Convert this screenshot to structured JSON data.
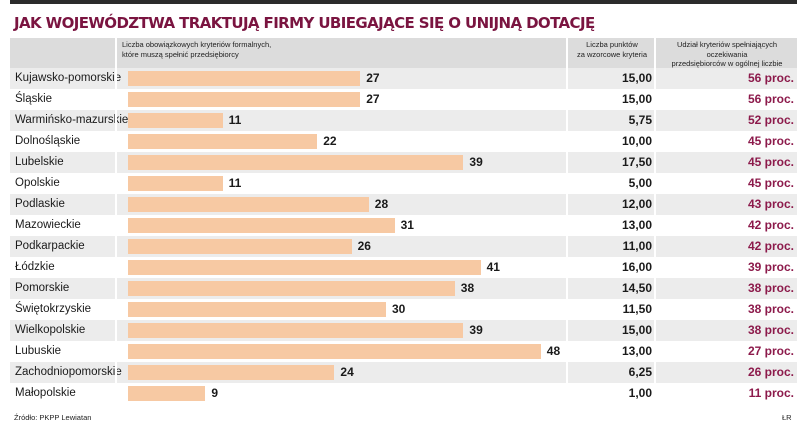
{
  "title": "JAK WOJEWÓDZTWA TRAKTUJĄ FIRMY UBIEGAJĄCE SIĘ O UNIJNĄ DOTACJĘ",
  "headers": {
    "col1_line1": "Liczba obowiązkowych kryteriów formalnych,",
    "col1_line2": "które muszą spełnić przedsiębiorcy",
    "col2_line1": "Liczba punktów",
    "col2_line2": "za wzorcowe kryteria",
    "col3_line1": "Udział kryteriów spełniających oczekiwania",
    "col3_line2": "przedsiębiorców w ogólnej liczbie kryteriów"
  },
  "source": "Źródło: PKPP Lewiatan",
  "author": "ŁR",
  "colors": {
    "bar": "#f7c9a3",
    "accent": "#8c1a4b",
    "title": "#7a1440"
  },
  "chart_data": {
    "type": "bar",
    "orientation": "horizontal",
    "title": "JAK WOJEWÓDZTWA TRAKTUJĄ FIRMY UBIEGAJĄCE SIĘ O UNIJNĄ DOTACJĘ",
    "xlim": [
      0,
      50
    ],
    "rows": [
      {
        "region": "Kujawsko-pomorskie",
        "criteria": 27,
        "points": "15,00",
        "share": "56 proc."
      },
      {
        "region": "Śląskie",
        "criteria": 27,
        "points": "15,00",
        "share": "56 proc."
      },
      {
        "region": "Warmińsko-mazurskie",
        "criteria": 11,
        "points": "5,75",
        "share": "52 proc."
      },
      {
        "region": "Dolnośląskie",
        "criteria": 22,
        "points": "10,00",
        "share": "45 proc."
      },
      {
        "region": "Lubelskie",
        "criteria": 39,
        "points": "17,50",
        "share": "45 proc."
      },
      {
        "region": "Opolskie",
        "criteria": 11,
        "points": "5,00",
        "share": "45 proc."
      },
      {
        "region": "Podlaskie",
        "criteria": 28,
        "points": "12,00",
        "share": "43 proc."
      },
      {
        "region": "Mazowieckie",
        "criteria": 31,
        "points": "13,00",
        "share": "42 proc."
      },
      {
        "region": "Podkarpackie",
        "criteria": 26,
        "points": "11,00",
        "share": "42 proc."
      },
      {
        "region": "Łódzkie",
        "criteria": 41,
        "points": "16,00",
        "share": "39 proc."
      },
      {
        "region": "Pomorskie",
        "criteria": 38,
        "points": "14,50",
        "share": "38 proc."
      },
      {
        "region": "Świętokrzyskie",
        "criteria": 30,
        "points": "11,50",
        "share": "38 proc."
      },
      {
        "region": "Wielkopolskie",
        "criteria": 39,
        "points": "15,00",
        "share": "38 proc."
      },
      {
        "region": "Lubuskie",
        "criteria": 48,
        "points": "13,00",
        "share": "27 proc."
      },
      {
        "region": "Zachodniopomorskie",
        "criteria": 24,
        "points": "6,25",
        "share": "26 proc."
      },
      {
        "region": "Małopolskie",
        "criteria": 9,
        "points": "1,00",
        "share": "11 proc."
      }
    ]
  }
}
